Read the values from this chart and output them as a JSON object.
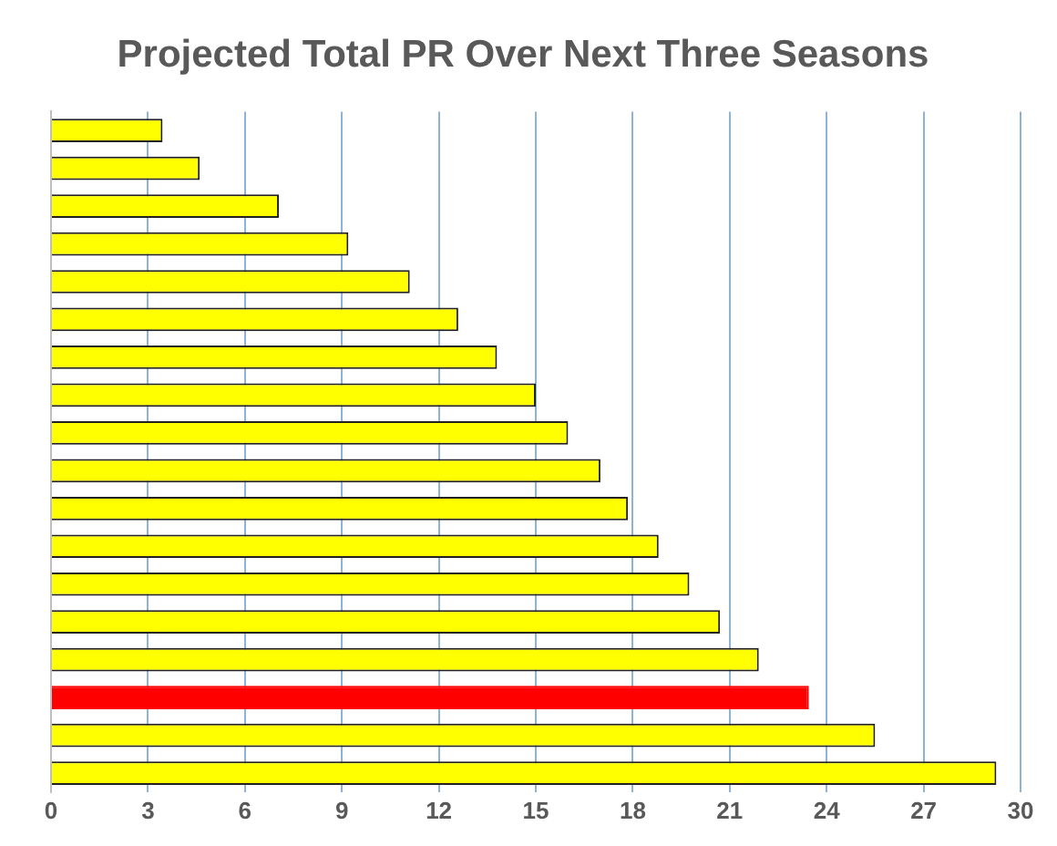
{
  "chart_data": {
    "type": "bar",
    "orientation": "horizontal",
    "title": "Projected Total PR Over Next Three Seasons",
    "categories": [
      null,
      null,
      null,
      null,
      null,
      null,
      null,
      null,
      null,
      null,
      null,
      null,
      null,
      null,
      null,
      null,
      null,
      null
    ],
    "values": [
      3.45,
      4.6,
      7.05,
      9.2,
      11.1,
      12.6,
      13.8,
      15.0,
      16.0,
      17.0,
      17.85,
      18.8,
      19.75,
      20.7,
      21.9,
      23.45,
      25.5,
      29.25
    ],
    "colors": [
      "#ffff00",
      "#ffff00",
      "#ffff00",
      "#ffff00",
      "#ffff00",
      "#ffff00",
      "#ffff00",
      "#ffff00",
      "#ffff00",
      "#ffff00",
      "#ffff00",
      "#ffff00",
      "#ffff00",
      "#ffff00",
      "#ffff00",
      "#ff0000",
      "#ffff00",
      "#ffff00"
    ],
    "xlim": [
      0,
      30
    ],
    "xticks": [
      0,
      3,
      6,
      9,
      12,
      15,
      18,
      21,
      24,
      27,
      30
    ],
    "grid": "x",
    "legend": false
  }
}
